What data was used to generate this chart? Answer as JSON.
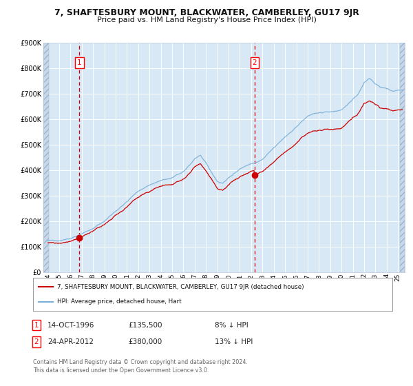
{
  "title_line1": "7, SHAFTESBURY MOUNT, BLACKWATER, CAMBERLEY, GU17 9JR",
  "title_line2": "Price paid vs. HM Land Registry's House Price Index (HPI)",
  "ylim": [
    0,
    900000
  ],
  "yticks": [
    0,
    100000,
    200000,
    300000,
    400000,
    500000,
    600000,
    700000,
    800000,
    900000
  ],
  "xlim_start": 1993.6,
  "xlim_end": 2025.6,
  "background_color": "#d8e8f5",
  "grid_color": "#ffffff",
  "red_line_color": "#cc0000",
  "blue_line_color": "#7ab0d8",
  "marker_color": "#cc0000",
  "dashed_line_color": "#cc0000",
  "purchase1_date": 1996.79,
  "purchase1_price": 135500,
  "purchase1_label": "1",
  "purchase2_date": 2012.31,
  "purchase2_price": 380000,
  "purchase2_label": "2",
  "legend_line1": "7, SHAFTESBURY MOUNT, BLACKWATER, CAMBERLEY, GU17 9JR (detached house)",
  "legend_line2": "HPI: Average price, detached house, Hart",
  "note1_label": "1",
  "note1_date": "14-OCT-1996",
  "note1_price": "£135,500",
  "note1_hpi": "8% ↓ HPI",
  "note2_label": "2",
  "note2_date": "24-APR-2012",
  "note2_price": "£380,000",
  "note2_hpi": "13% ↓ HPI",
  "footer": "Contains HM Land Registry data © Crown copyright and database right 2024.\nThis data is licensed under the Open Government Licence v3.0."
}
